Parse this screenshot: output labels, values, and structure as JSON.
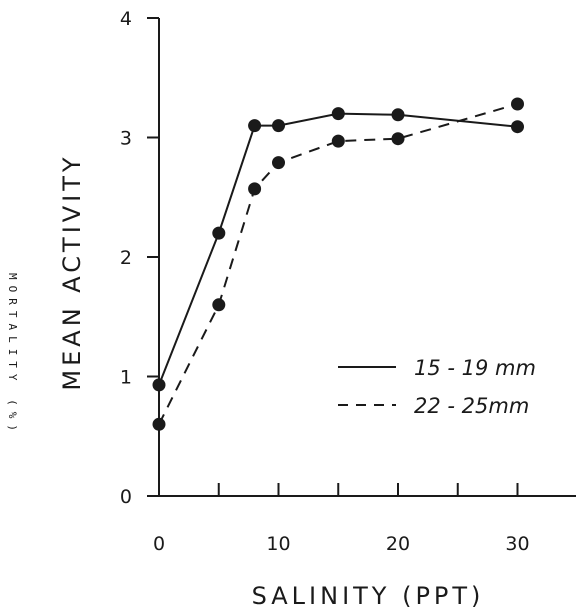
{
  "chart_data": {
    "type": "line",
    "xlabel": "SALINITY  (PPT)",
    "ylabel": "MEAN ACTIVITY",
    "side_label": "MORTALITY (%)",
    "xlim": [
      0,
      35
    ],
    "ylim": [
      0,
      4
    ],
    "x_ticks": [
      0,
      5,
      10,
      15,
      20,
      25,
      30
    ],
    "x_tick_labels": [
      "0",
      "",
      "10",
      "",
      "20",
      "",
      "30"
    ],
    "y_ticks": [
      0,
      1,
      2,
      3,
      4
    ],
    "y_tick_labels": [
      "0",
      "1",
      "2",
      "3",
      "4"
    ],
    "grid": false,
    "legend_position": "center-right",
    "series": [
      {
        "name": "15 - 19 mm",
        "style": "solid",
        "x": [
          0,
          5,
          8,
          10,
          15,
          20,
          30
        ],
        "y": [
          0.93,
          2.2,
          3.1,
          3.1,
          3.2,
          3.19,
          3.09
        ]
      },
      {
        "name": "22 - 25mm",
        "style": "dashed",
        "x": [
          0,
          5,
          8,
          10,
          15,
          20,
          30
        ],
        "y": [
          0.6,
          1.6,
          2.57,
          2.79,
          2.97,
          2.99,
          3.28
        ]
      }
    ]
  }
}
